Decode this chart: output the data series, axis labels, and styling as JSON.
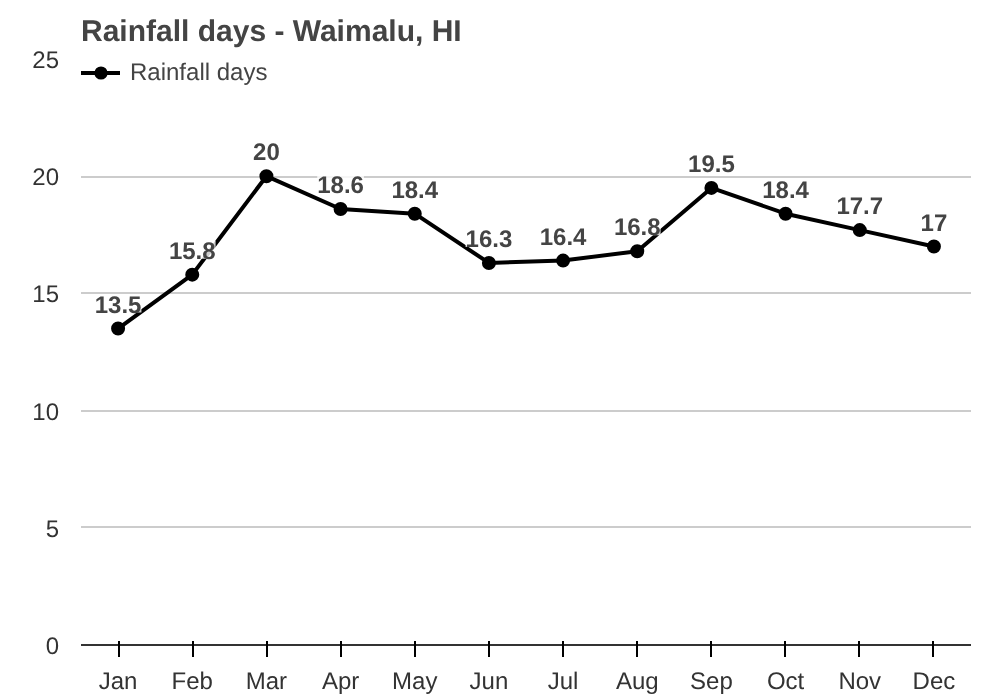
{
  "chart_data": {
    "type": "line",
    "title": "Rainfall days - Waimalu, HI",
    "categories": [
      "Jan",
      "Feb",
      "Mar",
      "Apr",
      "May",
      "Jun",
      "Jul",
      "Aug",
      "Sep",
      "Oct",
      "Nov",
      "Dec"
    ],
    "series": [
      {
        "name": "Rainfall days",
        "color": "#000000",
        "values": [
          13.5,
          15.8,
          20,
          18.6,
          18.4,
          16.3,
          16.4,
          16.8,
          19.5,
          18.4,
          17.7,
          17
        ]
      }
    ],
    "ylim": [
      0,
      25
    ],
    "yticks": [
      0,
      5,
      10,
      15,
      20,
      25
    ],
    "grid": "y",
    "legend": "top left",
    "marker": "circle",
    "line_style": "solid",
    "data_labels": true
  }
}
